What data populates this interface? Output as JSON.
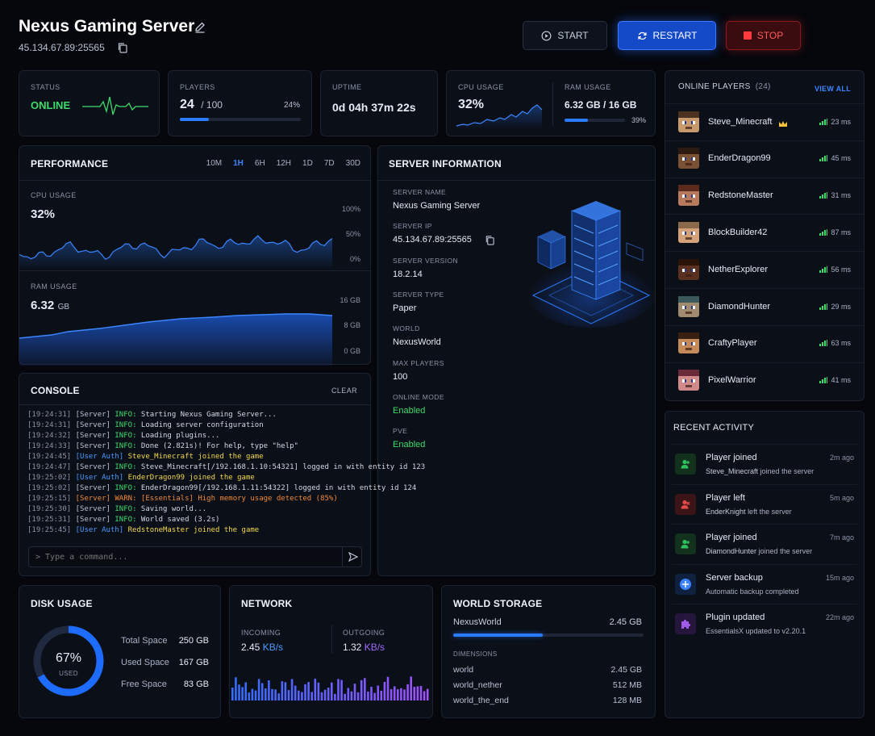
{
  "header": {
    "title": "Nexus Gaming Server",
    "address": "45.134.67.89:25565",
    "start_label": "START",
    "restart_label": "RESTART",
    "stop_label": "STOP"
  },
  "stats": {
    "status": {
      "label": "STATUS",
      "value": "ONLINE"
    },
    "players": {
      "label": "PLAYERS",
      "value": "24",
      "max": "/ 100",
      "percent": "24%",
      "fraction": 0.24
    },
    "uptime": {
      "label": "UPTIME",
      "value": "0d 04h 37m 22s"
    },
    "cpu": {
      "label": "CPU USAGE",
      "value": "32%"
    },
    "ram": {
      "label": "RAM USAGE",
      "value": "6.32 GB / 16 GB",
      "percent": "39%",
      "fraction": 0.39
    }
  },
  "performance": {
    "title": "PERFORMANCE",
    "ranges": [
      "10M",
      "1H",
      "6H",
      "12H",
      "1D",
      "7D",
      "30D"
    ],
    "active_range": "1H",
    "cpu": {
      "label": "CPU USAGE",
      "value": "32%",
      "ticks": [
        "100%",
        "50%",
        "0%"
      ]
    },
    "ram": {
      "label": "RAM USAGE",
      "value": "6.32",
      "unit": "GB",
      "ticks": [
        "16 GB",
        "8 GB",
        "0 GB"
      ]
    }
  },
  "server_info": {
    "title": "SERVER INFORMATION",
    "fields": [
      {
        "label": "SERVER NAME",
        "value": "Nexus Gaming Server"
      },
      {
        "label": "SERVER IP",
        "value": "45.134.67.89:25565"
      },
      {
        "label": "SERVER VERSION",
        "value": "18.2.14"
      },
      {
        "label": "SERVER TYPE",
        "value": "Paper"
      },
      {
        "label": "WORLD",
        "value": "NexusWorld"
      },
      {
        "label": "MAX PLAYERS",
        "value": "100"
      },
      {
        "label": "ONLINE MODE",
        "value": "Enabled"
      },
      {
        "label": "PVE",
        "value": "Enabled"
      }
    ]
  },
  "console": {
    "title": "CONSOLE",
    "clear_label": "CLEAR",
    "placeholder": "> Type a command...",
    "lines": [
      {
        "time": "[19:24:31]",
        "src": "[Server]",
        "lvl": "INFO:",
        "msg": "Starting Nexus Gaming Server...",
        "kind": "info"
      },
      {
        "time": "[19:24:31]",
        "src": "[Server]",
        "lvl": "INFO:",
        "msg": "Loading server configuration",
        "kind": "info"
      },
      {
        "time": "[19:24:32]",
        "src": "[Server]",
        "lvl": "INFO:",
        "msg": "Loading plugins...",
        "kind": "info"
      },
      {
        "time": "[19:24:33]",
        "src": "[Server]",
        "lvl": "INFO:",
        "msg": "Done (2.821s)! For help, type \"help\"",
        "kind": "info"
      },
      {
        "time": "[19:24:45]",
        "src": "[User Auth]",
        "lvl": "",
        "msg": "Steve_Minecraft joined the game",
        "kind": "auth"
      },
      {
        "time": "[19:24:47]",
        "src": "[Server]",
        "lvl": "INFO:",
        "msg": "Steve_Minecraft[/192.168.1.10:54321] logged in with entity id 123",
        "kind": "info"
      },
      {
        "time": "[19:25:02]",
        "src": "[User Auth]",
        "lvl": "",
        "msg": "EnderDragon99 joined the game",
        "kind": "auth"
      },
      {
        "time": "[19:25:02]",
        "src": "[Server]",
        "lvl": "INFO:",
        "msg": "EnderDragon99[/192.168.1.11:54322] logged in with entity id 124",
        "kind": "info"
      },
      {
        "time": "[19:25:15]",
        "src": "[Server]",
        "lvl": "WARN:",
        "msg": "[Essentials] High memory usage detected (85%)",
        "kind": "warn"
      },
      {
        "time": "[19:25:30]",
        "src": "[Server]",
        "lvl": "INFO:",
        "msg": "Saving world...",
        "kind": "info"
      },
      {
        "time": "[19:25:31]",
        "src": "[Server]",
        "lvl": "INFO:",
        "msg": "World saved (3.2s)",
        "kind": "info"
      },
      {
        "time": "[19:25:45]",
        "src": "[User Auth]",
        "lvl": "",
        "msg": "RedstoneMaster joined the game",
        "kind": "auth"
      }
    ]
  },
  "players_panel": {
    "title": "ONLINE PLAYERS",
    "count": "(24)",
    "view_all": "VIEW ALL",
    "players": [
      {
        "name": "Steve_Minecraft",
        "ping": "23 ms",
        "skin": "#c69a6d",
        "hair": "#4a3120",
        "crown": true
      },
      {
        "name": "EnderDragon99",
        "ping": "45 ms",
        "skin": "#7a5233",
        "hair": "#2d1a10",
        "crown": false
      },
      {
        "name": "RedstoneMaster",
        "ping": "31 ms",
        "skin": "#b87a5c",
        "hair": "#5a2a1c",
        "crown": false
      },
      {
        "name": "BlockBuilder42",
        "ping": "87 ms",
        "skin": "#d4a27a",
        "hair": "#8a6a4a",
        "crown": false
      },
      {
        "name": "NetherExplorer",
        "ping": "56 ms",
        "skin": "#5a3020",
        "hair": "#2a1408",
        "crown": false
      },
      {
        "name": "DiamondHunter",
        "ping": "29 ms",
        "skin": "#a08a70",
        "hair": "#3a5a5a",
        "crown": false
      },
      {
        "name": "CraftyPlayer",
        "ping": "63 ms",
        "skin": "#c48a5a",
        "hair": "#3a2010",
        "crown": false
      },
      {
        "name": "PixelWarrior",
        "ping": "41 ms",
        "skin": "#d08a8a",
        "hair": "#6a2a3a",
        "crown": false
      }
    ]
  },
  "activity": {
    "title": "RECENT ACTIVITY",
    "items": [
      {
        "title": "Player joined",
        "who": "Steve_Minecraft",
        "rest": "joined the server",
        "time": "2m ago",
        "icon": "user-joined-icon",
        "color": "#2fbf5c",
        "bg": "#12321d"
      },
      {
        "title": "Player left",
        "who": "EnderKnight",
        "rest": "left the server",
        "time": "5m ago",
        "icon": "user-left-icon",
        "color": "#e24a4a",
        "bg": "#3a1416"
      },
      {
        "title": "Player joined",
        "who": "DiamondHunter",
        "rest": "joined the server",
        "time": "7m ago",
        "icon": "user-joined-icon",
        "color": "#2fbf5c",
        "bg": "#12321d"
      },
      {
        "title": "Server backup",
        "who": "",
        "rest": "Automatic backup completed",
        "time": "15m ago",
        "icon": "backup-icon",
        "color": "#3a82ff",
        "bg": "#10203f"
      },
      {
        "title": "Plugin updated",
        "who": "",
        "rest": "EssentialsX updated to v2.20.1",
        "time": "22m ago",
        "icon": "puzzle-icon",
        "color": "#a05ae8",
        "bg": "#26163d"
      }
    ]
  },
  "disk": {
    "title": "DISK USAGE",
    "percent": "67%",
    "used_word": "USED",
    "fraction": 0.67,
    "rows": [
      {
        "label": "Total Space",
        "value": "250 GB"
      },
      {
        "label": "Used Space",
        "value": "167 GB"
      },
      {
        "label": "Free Space",
        "value": "83 GB"
      }
    ]
  },
  "network": {
    "title": "NETWORK",
    "incoming_label": "INCOMING",
    "incoming_value": "2.45",
    "incoming_unit": "KB/s",
    "outgoing_label": "OUTGOING",
    "outgoing_value": "1.32",
    "outgoing_unit": "KB/s"
  },
  "storage": {
    "title": "WORLD STORAGE",
    "world_name": "NexusWorld",
    "world_size": "2.45 GB",
    "fraction": 0.47,
    "dimensions_label": "DIMENSIONS",
    "dimensions": [
      {
        "name": "world",
        "size": "2.45 GB"
      },
      {
        "name": "world_nether",
        "size": "512 MB"
      },
      {
        "name": "world_the_end",
        "size": "128 MB"
      }
    ]
  },
  "colors": {
    "accent": "#2a7bff",
    "online": "#3ddc6b",
    "danger": "#e03a3a",
    "warn": "#f08a3a",
    "purple": "#9a5cf0"
  }
}
